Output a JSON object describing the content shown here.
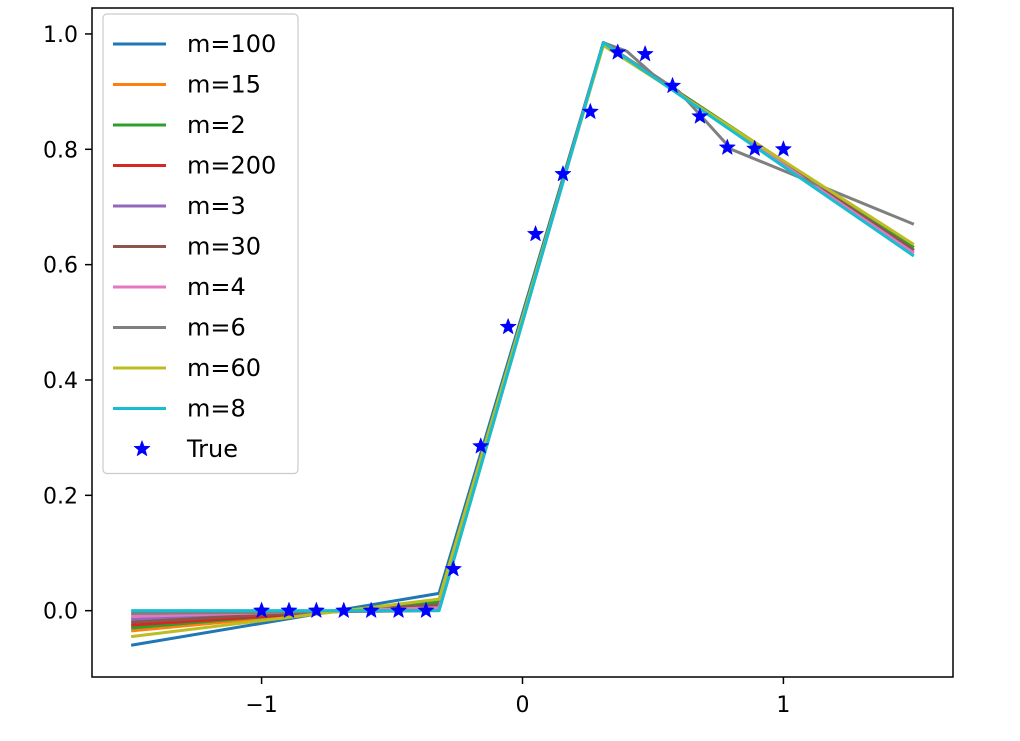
{
  "chart_data": {
    "type": "line",
    "title": "",
    "xlabel": "",
    "ylabel": "",
    "xlim": [
      -1.65,
      1.65
    ],
    "ylim": [
      -0.115,
      1.045
    ],
    "xticks": [
      {
        "value": -1,
        "label": "−1"
      },
      {
        "value": 0,
        "label": "0"
      },
      {
        "value": 1,
        "label": "1"
      }
    ],
    "yticks": [
      {
        "value": 0.0,
        "label": "0.0"
      },
      {
        "value": 0.2,
        "label": "0.2"
      },
      {
        "value": 0.4,
        "label": "0.4"
      },
      {
        "value": 0.6,
        "label": "0.6"
      },
      {
        "value": 0.8,
        "label": "0.8"
      },
      {
        "value": 1.0,
        "label": "1.0"
      }
    ],
    "grid": false,
    "legend_position": "upper-left",
    "series": [
      {
        "name": "m=100",
        "color": "#1f77b4",
        "x": [
          -1.5,
          -0.32,
          0.31,
          1.5
        ],
        "y": [
          -0.06,
          0.03,
          0.985,
          0.625
        ]
      },
      {
        "name": "m=15",
        "color": "#ff7f0e",
        "x": [
          -1.5,
          -0.32,
          0.31,
          1.5
        ],
        "y": [
          -0.035,
          0.015,
          0.985,
          0.63
        ]
      },
      {
        "name": "m=2",
        "color": "#2ca02c",
        "x": [
          -1.5,
          -0.32,
          0.31,
          1.5
        ],
        "y": [
          -0.03,
          0.015,
          0.985,
          0.63
        ]
      },
      {
        "name": "m=200",
        "color": "#d62728",
        "x": [
          -1.5,
          -0.32,
          0.31,
          1.5
        ],
        "y": [
          -0.025,
          0.01,
          0.985,
          0.62
        ]
      },
      {
        "name": "m=3",
        "color": "#9467bd",
        "x": [
          -1.5,
          -0.32,
          0.31,
          1.5
        ],
        "y": [
          -0.015,
          0.005,
          0.985,
          0.625
        ]
      },
      {
        "name": "m=30",
        "color": "#8c564b",
        "x": [
          -1.5,
          -0.32,
          0.31,
          1.5
        ],
        "y": [
          -0.02,
          0.01,
          0.985,
          0.625
        ]
      },
      {
        "name": "m=4",
        "color": "#e377c2",
        "x": [
          -1.5,
          -0.32,
          0.31,
          1.5
        ],
        "y": [
          -0.01,
          0.005,
          0.985,
          0.62
        ]
      },
      {
        "name": "m=6",
        "color": "#7f7f7f",
        "x": [
          -1.5,
          -0.32,
          0.31,
          0.4,
          0.5,
          0.6,
          0.8,
          1.5
        ],
        "y": [
          -0.005,
          0.0,
          0.985,
          0.97,
          0.93,
          0.9,
          0.8,
          0.67
        ]
      },
      {
        "name": "m=60",
        "color": "#bcbd22",
        "x": [
          -1.5,
          -0.32,
          0.31,
          1.5
        ],
        "y": [
          -0.045,
          0.02,
          0.98,
          0.635
        ]
      },
      {
        "name": "m=8",
        "color": "#17becf",
        "x": [
          -1.5,
          -0.32,
          0.31,
          1.5
        ],
        "y": [
          0.0,
          0.0,
          0.985,
          0.615
        ]
      },
      {
        "name": "True",
        "color": "#0000ff",
        "marker": "star",
        "line": false,
        "x": [
          -1.0,
          -0.895,
          -0.79,
          -0.685,
          -0.58,
          -0.475,
          -0.37,
          -0.265,
          -0.16,
          -0.055,
          0.05,
          0.155,
          0.26,
          0.365,
          0.47,
          0.575,
          0.68,
          0.785,
          0.89,
          1.0
        ],
        "y": [
          0.0,
          0.0,
          0.0,
          0.0,
          0.0,
          0.0,
          0.0,
          0.072,
          0.285,
          0.492,
          0.653,
          0.757,
          0.865,
          0.968,
          0.965,
          0.91,
          0.857,
          0.803,
          0.801,
          0.8
        ]
      }
    ]
  }
}
